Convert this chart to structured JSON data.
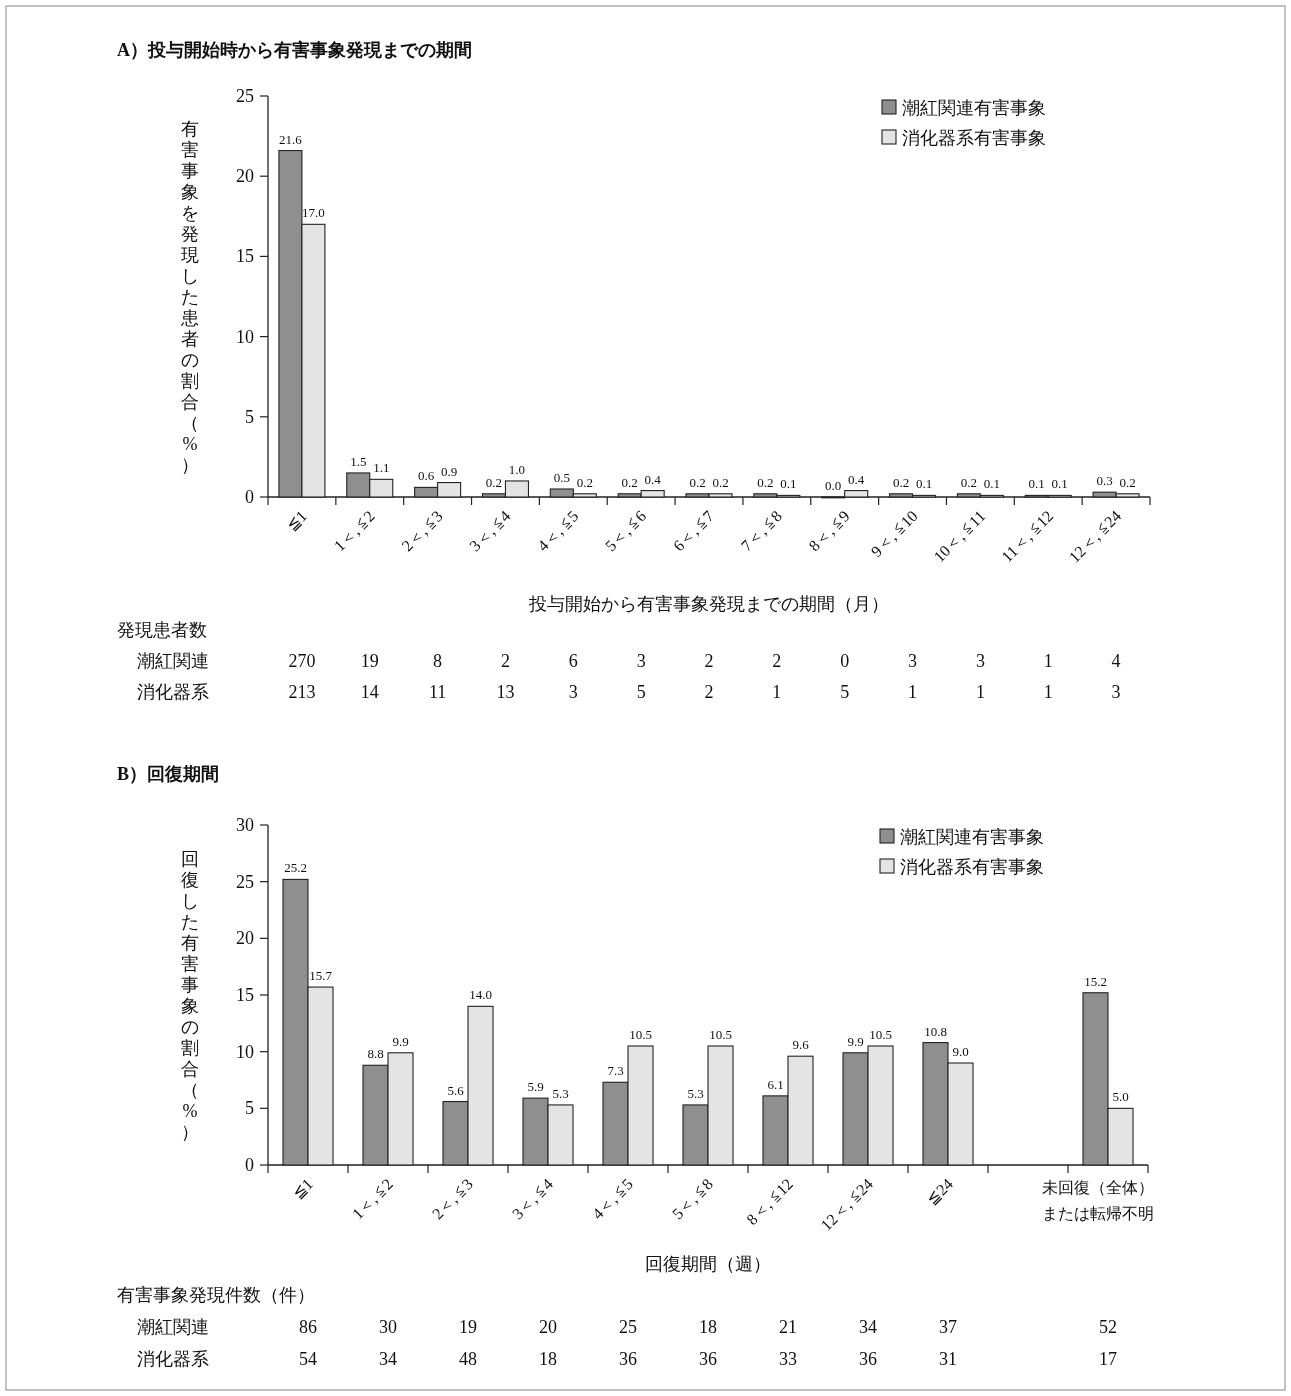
{
  "chart_data": [
    {
      "type": "bar",
      "title": "**A）投与開始時から有害事象発現までの期間**",
      "xlabel": "投与開始から有害事象発現までの期間（月）",
      "ylabel": "有害事象を発現した患者の割合（%）",
      "categories": [
        "≦1",
        "1＜, ≦2",
        "2＜, ≦3",
        "3＜, ≦4",
        "4＜, ≦5",
        "5＜, ≦6",
        "6＜, ≦7",
        "7＜, ≦8",
        "8＜, ≦9",
        "9＜, ≦10",
        "10＜, ≦11",
        "11＜, ≦12",
        "12＜, ≦24"
      ],
      "series": [
        {
          "name": "潮紅関連有害事象",
          "color": "#8f8f8f",
          "values": [
            21.6,
            1.5,
            0.6,
            0.2,
            0.5,
            0.2,
            0.2,
            0.2,
            0.0,
            0.2,
            0.2,
            0.1,
            0.3
          ],
          "value_labels": [
            "21.6",
            "1.5",
            "0.6",
            "0.2",
            "0.5",
            "0.2",
            "0.2",
            "0.2",
            "0.0",
            "0.2",
            "0.2",
            "0.1",
            "0.3"
          ]
        },
        {
          "name": "消化器系有害事象",
          "color": "#e4e4e4",
          "values": [
            17.0,
            1.1,
            0.9,
            1.0,
            0.2,
            0.4,
            0.2,
            0.1,
            0.4,
            0.1,
            0.1,
            0.1,
            0.2
          ],
          "value_labels": [
            "17.0",
            "1.1",
            "0.9",
            "1.0",
            "0.2",
            "0.4",
            "0.2",
            "0.1",
            "0.4",
            "0.1",
            "0.1",
            "0.1",
            "0.2"
          ]
        }
      ],
      "ylim": [
        0,
        25
      ],
      "yticks": [
        0,
        5,
        10,
        15,
        20,
        25
      ],
      "grid": false,
      "legend": "top right"
    },
    {
      "type": "heatmap",
      "title": "発現患者数",
      "categories": [
        null,
        null,
        null,
        null,
        null,
        null,
        null,
        null,
        null,
        null,
        null,
        null,
        null
      ],
      "y_categories": [
        "潮紅関連",
        "消化器系"
      ],
      "cells": [
        [
          270,
          19,
          8,
          2,
          6,
          3,
          2,
          2,
          0,
          3,
          3,
          1,
          4
        ],
        [
          213,
          14,
          11,
          13,
          3,
          5,
          2,
          1,
          5,
          1,
          1,
          1,
          3
        ]
      ],
      "data_labels": true
    },
    {
      "type": "bar",
      "title": "**B）回復期間**",
      "xlabel": "回復期間（週）",
      "ylabel": "回復した有害事象の割合（%）",
      "categories": [
        "≦1",
        "1＜, ≦2",
        "2＜, ≦3",
        "3＜, ≦4",
        "4＜, ≦5",
        "5＜, ≦8",
        "8＜, ≦12",
        "12＜, ≦24",
        "≦24",
        null,
        "未回復（全体）または転帰不明"
      ],
      "series": [
        {
          "name": "潮紅関連有害事象",
          "color": "#8f8f8f",
          "values": [
            25.2,
            8.8,
            5.6,
            5.9,
            7.3,
            5.3,
            6.1,
            9.9,
            10.8,
            null,
            15.2
          ],
          "value_labels": [
            "25.2",
            "8.8",
            "5.6",
            "5.9",
            "7.3",
            "5.3",
            "6.1",
            "9.9",
            "10.8",
            null,
            "15.2"
          ]
        },
        {
          "name": "消化器系有害事象",
          "color": "#e4e4e4",
          "values": [
            15.7,
            9.9,
            14.0,
            5.3,
            10.5,
            10.5,
            9.6,
            10.5,
            9.0,
            null,
            5.0
          ],
          "value_labels": [
            "15.7",
            "9.9",
            "14.0",
            "5.3",
            "10.5",
            "10.5",
            "9.6",
            "10.5",
            "9.0",
            null,
            "5.0"
          ]
        }
      ],
      "ylim": [
        0,
        30
      ],
      "yticks": [
        0,
        5,
        10,
        15,
        20,
        25,
        30
      ],
      "grid": false,
      "legend": "top right"
    },
    {
      "type": "heatmap",
      "title": "有害事象発現件数（件）",
      "categories": [
        null,
        null,
        null,
        null,
        null,
        null,
        null,
        null,
        null,
        null,
        null
      ],
      "y_categories": [
        "潮紅関連",
        "消化器系"
      ],
      "cells": [
        [
          86,
          30,
          19,
          20,
          25,
          18,
          21,
          34,
          37,
          null,
          52
        ],
        [
          54,
          34,
          48,
          18,
          36,
          36,
          33,
          36,
          31,
          null,
          17
        ]
      ],
      "data_labels": true
    }
  ]
}
